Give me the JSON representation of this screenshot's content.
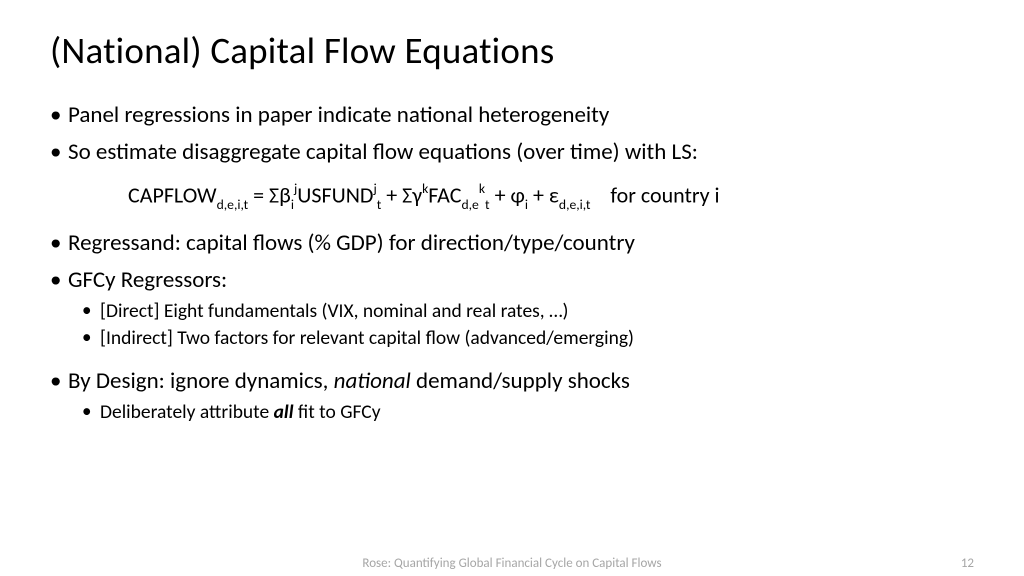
{
  "title": "(National) Capital Flow Equations",
  "bullets": {
    "b1": "Panel regressions in paper indicate national heterogeneity",
    "b2": "So estimate disaggregate capital flow equations (over time) with LS:",
    "b3": "Regressand: capital flows (% GDP) for direction/type/country",
    "b4": "GFCy Regressors:",
    "b4a": "[Direct] Eight fundamentals (VIX, nominal and real rates, …)",
    "b4b": "[Indirect] Two factors for relevant capital flow (advanced/emerging)",
    "b5_pre": "By Design: ignore dynamics, ",
    "b5_it": "national",
    "b5_post": " demand/supply shocks",
    "b5a_pre": "Deliberately attribute ",
    "b5a_bi": "all",
    "b5a_post": " fit to GFCy"
  },
  "equation": {
    "p1": "CAPFLOW",
    "s1": "d,e,i,t",
    "p2": " = Σβ",
    "s2": "i",
    "sup2": "j",
    "p3": "USFUND",
    "sup3": "j",
    "s3": "t",
    "p4": " + Σγ",
    "sup4": "k",
    "p5": "FAC",
    "s5": "d,e",
    "sup5": "k",
    "s5b": "t",
    "p6": " + φ",
    "s6": "i",
    "p7": " + ε",
    "s7": "d,e,i,t",
    "tail": "    for country i"
  },
  "footer": {
    "center": "Rose: Quantifying Global Financial Cycle on Capital Flows",
    "page": "12"
  }
}
